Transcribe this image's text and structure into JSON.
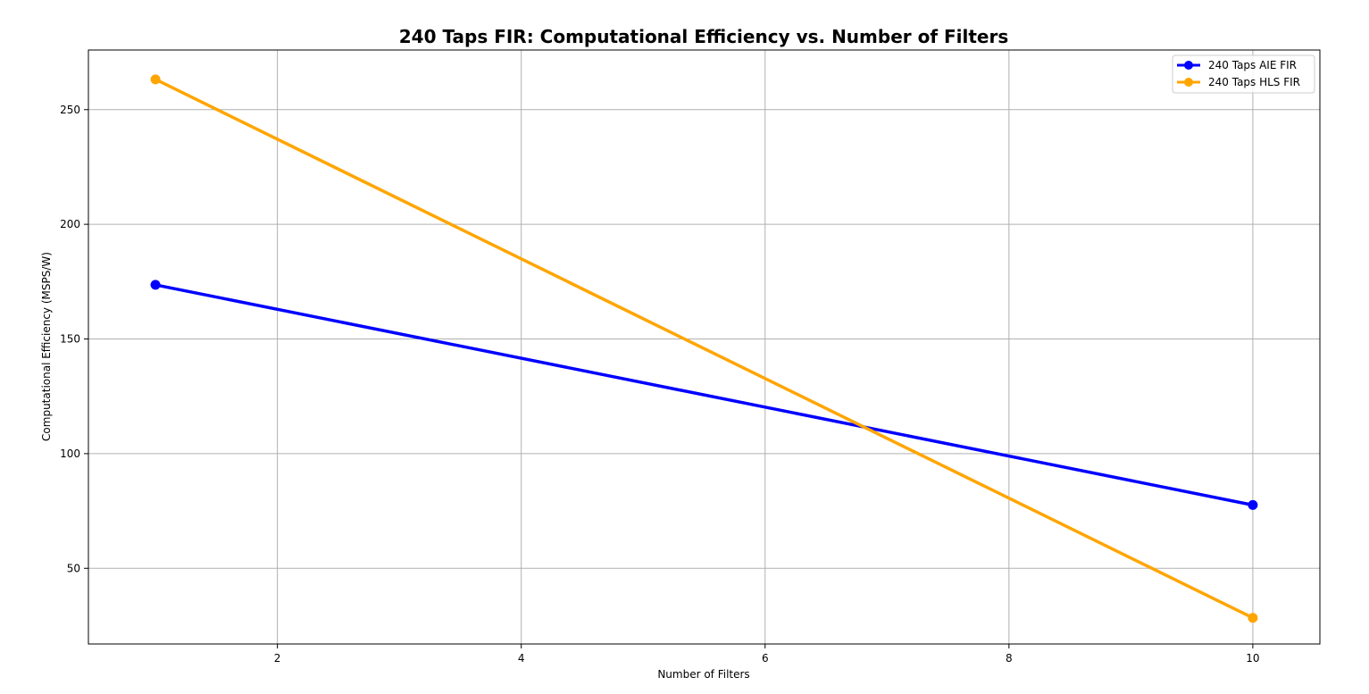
{
  "chart_data": {
    "type": "line",
    "title": "240 Taps FIR: Computational Efficiency vs. Number of Filters",
    "xlabel": "Number of Filters",
    "ylabel": "Computational Efficiency (MSPS/W)",
    "xlim": [
      0.45,
      10.55
    ],
    "ylim": [
      17,
      276
    ],
    "xticks": [
      2,
      4,
      6,
      8,
      10
    ],
    "yticks": [
      50,
      100,
      150,
      200,
      250
    ],
    "grid": true,
    "legend_position": "upper right",
    "series": [
      {
        "name": "240 Taps AIE FIR",
        "color": "#0000ff",
        "x": [
          1,
          10
        ],
        "y": [
          173.6,
          77.6
        ]
      },
      {
        "name": "240 Taps HLS FIR",
        "color": "#ffa500",
        "x": [
          1,
          10
        ],
        "y": [
          263.2,
          28.4
        ]
      }
    ]
  }
}
